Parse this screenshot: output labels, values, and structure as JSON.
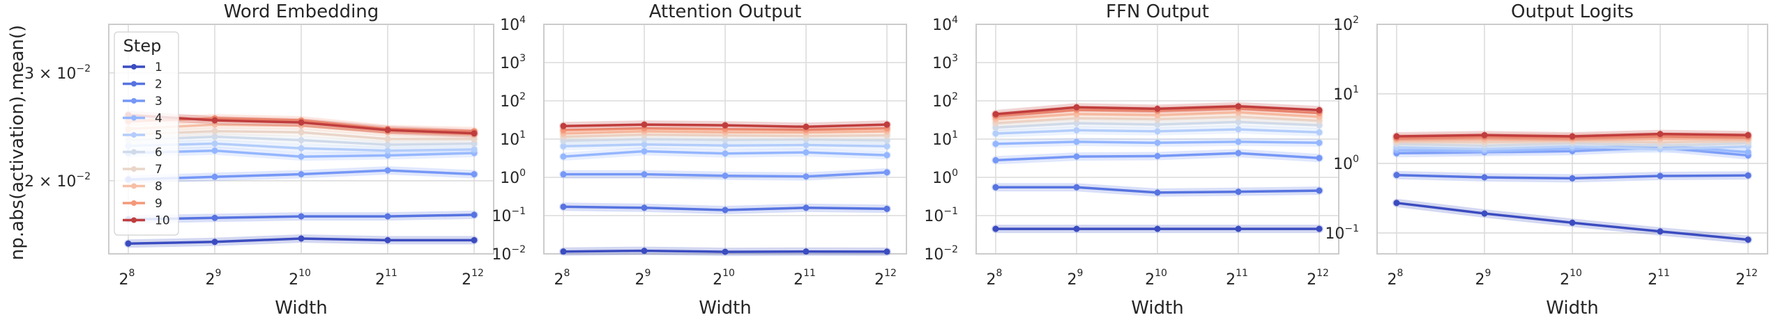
{
  "figure": {
    "ylabel": "np.abs(activation).mean()",
    "legend": {
      "title": "Step",
      "labels": [
        "1",
        "2",
        "3",
        "4",
        "5",
        "6",
        "7",
        "8",
        "9",
        "10"
      ],
      "placement": "upper-left of first panel"
    },
    "step_colors": [
      "#3b4cc0",
      "#5673e0",
      "#7597f6",
      "#94b6ff",
      "#b3cdfb",
      "#cfdaea",
      "#ead5c9",
      "#f6bfa6",
      "#f4987a",
      "#e16852",
      "#c03d3d"
    ]
  },
  "chart_data": [
    {
      "type": "line",
      "title": "Word Embedding",
      "xlabel": "Width",
      "ylabel": "np.abs(activation).mean()",
      "x": [
        256,
        512,
        1024,
        2048,
        4096
      ],
      "x_tick_labels": [
        [
          "2",
          "8"
        ],
        [
          "2",
          "9"
        ],
        [
          "2",
          "10"
        ],
        [
          "2",
          "11"
        ],
        [
          "2",
          "12"
        ]
      ],
      "yscale": "log",
      "ylim": [
        0.0152,
        0.036
      ],
      "y_ticks": [
        {
          "value": 0.03,
          "base": "3 × 10",
          "exp": "−2"
        },
        {
          "value": 0.02,
          "base": "2 × 10",
          "exp": "−2"
        }
      ],
      "grid": true,
      "legend": true,
      "series": [
        {
          "name": "1",
          "values": [
            0.0158,
            0.0159,
            0.0161,
            0.016,
            0.016
          ]
        },
        {
          "name": "2",
          "values": [
            0.0173,
            0.0174,
            0.0175,
            0.0175,
            0.0176
          ]
        },
        {
          "name": "3",
          "values": [
            0.0201,
            0.0203,
            0.0205,
            0.0208,
            0.0205
          ]
        },
        {
          "name": "4",
          "values": [
            0.0222,
            0.0224,
            0.0219,
            0.022,
            0.0222
          ]
        },
        {
          "name": "5",
          "values": [
            0.0228,
            0.023,
            0.0226,
            0.0224,
            0.0225
          ]
        },
        {
          "name": "6",
          "values": [
            0.0233,
            0.0236,
            0.0233,
            0.0229,
            0.023
          ]
        },
        {
          "name": "7",
          "values": [
            0.0238,
            0.0241,
            0.024,
            0.0234,
            0.0234
          ]
        },
        {
          "name": "8",
          "values": [
            0.0243,
            0.0247,
            0.0246,
            0.024,
            0.0238
          ]
        },
        {
          "name": "9",
          "values": [
            0.025,
            0.0253,
            0.0251,
            0.0243,
            0.0241
          ]
        },
        {
          "name": "10",
          "values": [
            0.0256,
            0.0251,
            0.0249,
            0.0242,
            0.0239
          ]
        }
      ]
    },
    {
      "type": "line",
      "title": "Attention Output",
      "xlabel": "Width",
      "x": [
        256,
        512,
        1024,
        2048,
        4096
      ],
      "x_tick_labels": [
        [
          "2",
          "8"
        ],
        [
          "2",
          "9"
        ],
        [
          "2",
          "10"
        ],
        [
          "2",
          "11"
        ],
        [
          "2",
          "12"
        ]
      ],
      "yscale": "log",
      "ylim": [
        0.01,
        10000
      ],
      "y_ticks": [
        {
          "value": 0.01,
          "base": "10",
          "exp": "−2"
        },
        {
          "value": 0.1,
          "base": "10",
          "exp": "−1"
        },
        {
          "value": 1,
          "base": "10",
          "exp": "0"
        },
        {
          "value": 10,
          "base": "10",
          "exp": "1"
        },
        {
          "value": 100,
          "base": "10",
          "exp": "2"
        },
        {
          "value": 1000,
          "base": "10",
          "exp": "3"
        },
        {
          "value": 10000,
          "base": "10",
          "exp": "4"
        }
      ],
      "grid": true,
      "series": [
        {
          "name": "1",
          "values": [
            0.0115,
            0.012,
            0.0113,
            0.0115,
            0.0114
          ]
        },
        {
          "name": "2",
          "values": [
            0.17,
            0.16,
            0.14,
            0.16,
            0.15
          ]
        },
        {
          "name": "3",
          "values": [
            1.2,
            1.2,
            1.1,
            1.05,
            1.35
          ]
        },
        {
          "name": "4",
          "values": [
            3.5,
            4.8,
            4.2,
            4.5,
            3.8
          ]
        },
        {
          "name": "5",
          "values": [
            6.5,
            7.2,
            6.8,
            7.0,
            6.5
          ]
        },
        {
          "name": "6",
          "values": [
            9,
            10,
            9.5,
            9.8,
            9.2
          ]
        },
        {
          "name": "7",
          "values": [
            11.5,
            13,
            12.5,
            12,
            12.5
          ]
        },
        {
          "name": "8",
          "values": [
            14,
            16,
            15,
            15,
            16
          ]
        },
        {
          "name": "9",
          "values": [
            17,
            19,
            18,
            17.5,
            19
          ]
        },
        {
          "name": "10",
          "values": [
            22,
            24,
            23,
            21,
            24
          ]
        }
      ]
    },
    {
      "type": "line",
      "title": "FFN Output",
      "xlabel": "Width",
      "x": [
        256,
        512,
        1024,
        2048,
        4096
      ],
      "x_tick_labels": [
        [
          "2",
          "8"
        ],
        [
          "2",
          "9"
        ],
        [
          "2",
          "10"
        ],
        [
          "2",
          "11"
        ],
        [
          "2",
          "12"
        ]
      ],
      "yscale": "log",
      "ylim": [
        0.01,
        10000
      ],
      "y_ticks": [
        {
          "value": 0.01,
          "base": "10",
          "exp": "−2"
        },
        {
          "value": 0.1,
          "base": "10",
          "exp": "−1"
        },
        {
          "value": 1,
          "base": "10",
          "exp": "0"
        },
        {
          "value": 10,
          "base": "10",
          "exp": "1"
        },
        {
          "value": 100,
          "base": "10",
          "exp": "2"
        },
        {
          "value": 1000,
          "base": "10",
          "exp": "3"
        },
        {
          "value": 10000,
          "base": "10",
          "exp": "4"
        }
      ],
      "grid": true,
      "series": [
        {
          "name": "1",
          "values": [
            0.045,
            0.045,
            0.045,
            0.045,
            0.045
          ]
        },
        {
          "name": "2",
          "values": [
            0.55,
            0.55,
            0.4,
            0.42,
            0.45
          ]
        },
        {
          "name": "3",
          "values": [
            2.8,
            3.5,
            3.6,
            4.3,
            3.2
          ]
        },
        {
          "name": "4",
          "values": [
            7.5,
            8.5,
            8.0,
            8.5,
            8.0
          ]
        },
        {
          "name": "5",
          "values": [
            14,
            17,
            16,
            18,
            15
          ]
        },
        {
          "name": "6",
          "values": [
            20,
            26,
            24,
            28,
            23
          ]
        },
        {
          "name": "7",
          "values": [
            26,
            35,
            33,
            38,
            30
          ]
        },
        {
          "name": "8",
          "values": [
            33,
            45,
            42,
            50,
            38
          ]
        },
        {
          "name": "9",
          "values": [
            40,
            58,
            55,
            63,
            48
          ]
        },
        {
          "name": "10",
          "values": [
            45,
            68,
            62,
            72,
            57
          ]
        }
      ]
    },
    {
      "type": "line",
      "title": "Output Logits",
      "xlabel": "Width",
      "x": [
        256,
        512,
        1024,
        2048,
        4096
      ],
      "x_tick_labels": [
        [
          "2",
          "8"
        ],
        [
          "2",
          "9"
        ],
        [
          "2",
          "10"
        ],
        [
          "2",
          "11"
        ],
        [
          "2",
          "12"
        ]
      ],
      "yscale": "log",
      "ylim": [
        0.05,
        100
      ],
      "y_ticks": [
        {
          "value": 0.1,
          "base": "10",
          "exp": "−1"
        },
        {
          "value": 1,
          "base": "10",
          "exp": "0"
        },
        {
          "value": 10,
          "base": "10",
          "exp": "1"
        },
        {
          "value": 100,
          "base": "10",
          "exp": "2"
        }
      ],
      "grid": true,
      "series": [
        {
          "name": "1",
          "values": [
            0.27,
            0.19,
            0.14,
            0.105,
            0.08
          ]
        },
        {
          "name": "2",
          "values": [
            0.68,
            0.63,
            0.61,
            0.66,
            0.67
          ]
        },
        {
          "name": "3",
          "values": [
            1.4,
            1.45,
            1.5,
            1.7,
            1.3
          ]
        },
        {
          "name": "4",
          "values": [
            1.55,
            1.5,
            1.65,
            1.8,
            1.45
          ]
        },
        {
          "name": "5",
          "values": [
            1.7,
            1.6,
            1.75,
            1.6,
            1.75
          ]
        },
        {
          "name": "6",
          "values": [
            1.9,
            1.8,
            1.95,
            1.8,
            1.95
          ]
        },
        {
          "name": "7",
          "values": [
            2.05,
            2.0,
            2.1,
            2.0,
            2.1
          ]
        },
        {
          "name": "8",
          "values": [
            2.2,
            2.2,
            2.2,
            2.25,
            2.25
          ]
        },
        {
          "name": "9",
          "values": [
            2.3,
            2.4,
            2.35,
            2.45,
            2.4
          ]
        },
        {
          "name": "10",
          "values": [
            2.45,
            2.55,
            2.45,
            2.65,
            2.55
          ]
        }
      ]
    }
  ]
}
